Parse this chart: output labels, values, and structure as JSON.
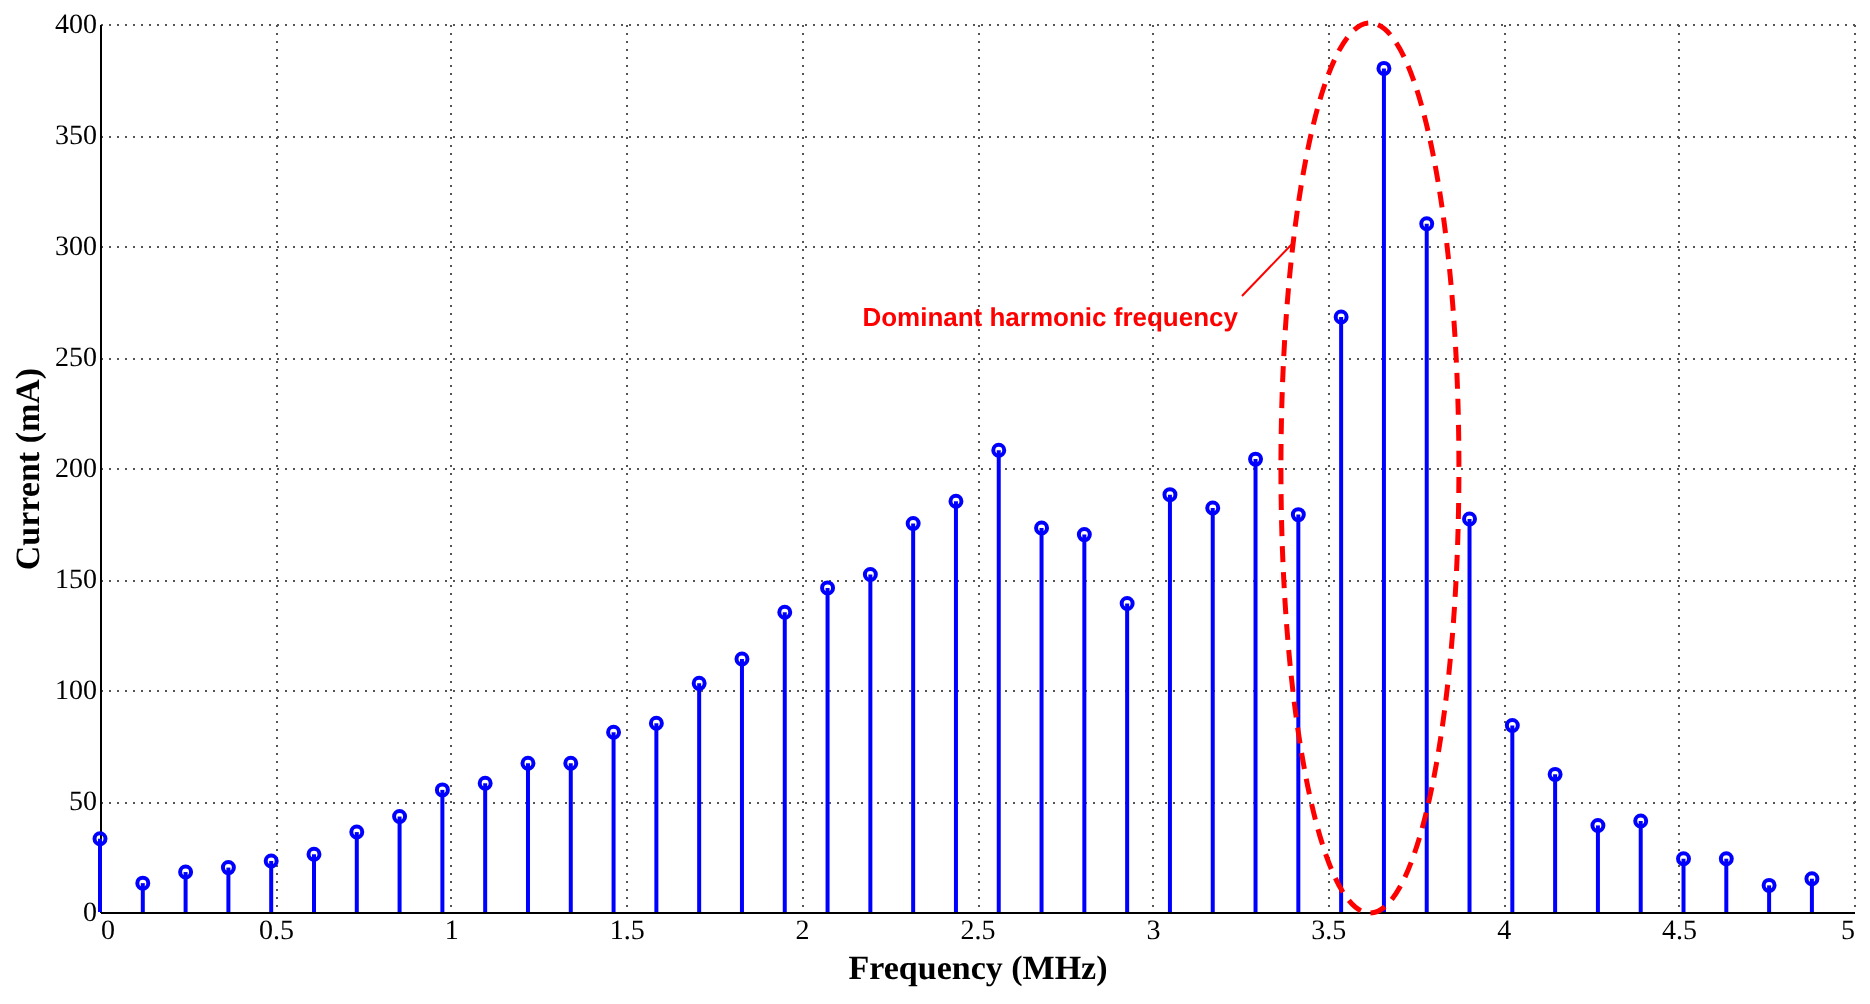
{
  "chart_data": {
    "type": "lollipop",
    "xlabel": "Frequency (MHz)",
    "ylabel": "Current (mA)",
    "x": [
      0,
      0.122,
      0.244,
      0.366,
      0.488,
      0.61,
      0.732,
      0.854,
      0.976,
      1.098,
      1.22,
      1.342,
      1.464,
      1.586,
      1.708,
      1.83,
      1.952,
      2.074,
      2.196,
      2.318,
      2.44,
      2.562,
      2.684,
      2.806,
      2.928,
      3.05,
      3.172,
      3.294,
      3.416,
      3.538,
      3.66,
      3.782,
      3.904,
      4.026,
      4.148,
      4.27,
      4.392,
      4.514,
      4.636,
      4.758,
      4.88
    ],
    "series": [
      {
        "color": "#0000ff",
        "values": [
          33,
          13,
          18,
          20,
          23,
          26,
          36,
          43,
          55,
          58,
          67,
          67,
          81,
          85,
          103,
          114,
          135,
          146,
          152,
          175,
          185,
          208,
          173,
          170,
          139,
          188,
          182,
          204,
          179,
          268,
          380,
          310,
          177,
          84,
          62,
          39,
          41,
          24,
          24,
          12,
          15
        ]
      }
    ],
    "xlim": [
      0,
      5
    ],
    "xticks": [
      0,
      0.5,
      1,
      1.5,
      2,
      2.5,
      3,
      3.5,
      4,
      4.5,
      5
    ],
    "ylim": [
      0,
      400
    ],
    "yticks": [
      0,
      50,
      100,
      150,
      200,
      250,
      300,
      350,
      400
    ],
    "grid": true,
    "marker": "circle",
    "annotations": [
      "Dominant harmonic frequency"
    ]
  }
}
